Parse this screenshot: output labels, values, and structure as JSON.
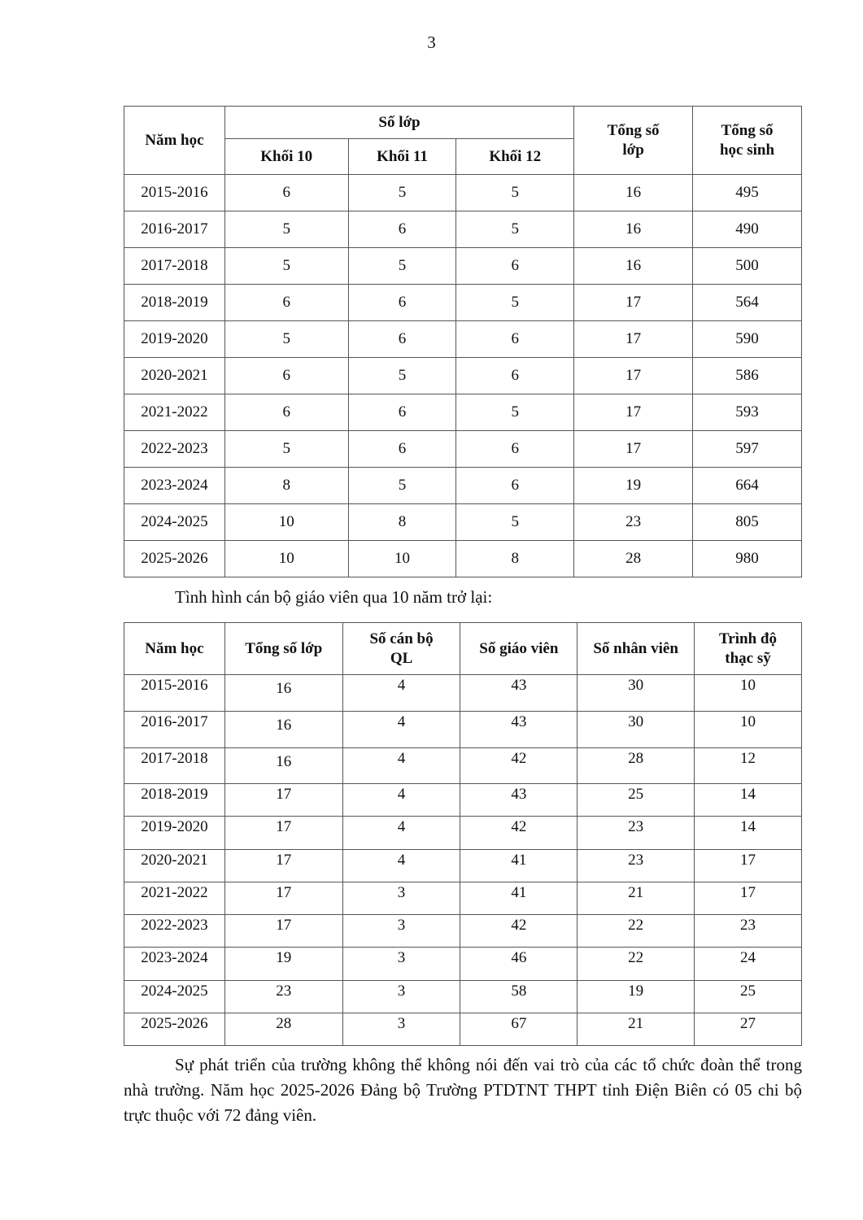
{
  "page_number": "3",
  "table1": {
    "headers": {
      "year": "Năm học",
      "group": "Số lớp",
      "k10": "Khối 10",
      "k11": "Khối 11",
      "k12": "Khối 12",
      "total_classes": "Tổng số lớp",
      "total_students": "Tổng số học sinh"
    },
    "rows": [
      [
        "2015-2016",
        "6",
        "5",
        "5",
        "16",
        "495"
      ],
      [
        "2016-2017",
        "5",
        "6",
        "5",
        "16",
        "490"
      ],
      [
        "2017-2018",
        "5",
        "5",
        "6",
        "16",
        "500"
      ],
      [
        "2018-2019",
        "6",
        "6",
        "5",
        "17",
        "564"
      ],
      [
        "2019-2020",
        "5",
        "6",
        "6",
        "17",
        "590"
      ],
      [
        "2020-2021",
        "6",
        "5",
        "6",
        "17",
        "586"
      ],
      [
        "2021-2022",
        "6",
        "6",
        "5",
        "17",
        "593"
      ],
      [
        "2022-2023",
        "5",
        "6",
        "6",
        "17",
        "597"
      ],
      [
        "2023-2024",
        "8",
        "5",
        "6",
        "19",
        "664"
      ],
      [
        "2024-2025",
        "10",
        "8",
        "5",
        "23",
        "805"
      ],
      [
        "2025-2026",
        "10",
        "10",
        "8",
        "28",
        "980"
      ]
    ]
  },
  "caption": "Tình hình cán bộ giáo viên qua 10 năm trở lại:",
  "table2": {
    "headers": [
      "Năm học",
      "Tổng số lớp",
      "Số cán bộ QL",
      "Số giáo viên",
      "Số nhân viên",
      "Trình độ thạc sỹ"
    ],
    "rows": [
      [
        "2015-2016",
        "16",
        "4",
        "43",
        "30",
        "10"
      ],
      [
        "2016-2017",
        "16",
        "4",
        "43",
        "30",
        "10"
      ],
      [
        "2017-2018",
        "16",
        "4",
        "42",
        "28",
        "12"
      ],
      [
        "2018-2019",
        "17",
        "4",
        "43",
        "25",
        "14"
      ],
      [
        "2019-2020",
        "17",
        "4",
        "42",
        "23",
        "14"
      ],
      [
        "2020-2021",
        "17",
        "4",
        "41",
        "23",
        "17"
      ],
      [
        "2021-2022",
        "17",
        "3",
        "41",
        "21",
        "17"
      ],
      [
        "2022-2023",
        "17",
        "3",
        "42",
        "22",
        "23"
      ],
      [
        "2023-2024",
        "19",
        "3",
        "46",
        "22",
        "24"
      ],
      [
        "2024-2025",
        "23",
        "3",
        "58",
        "19",
        "25"
      ],
      [
        "2025-2026",
        "28",
        "3",
        "67",
        "21",
        "27"
      ]
    ]
  },
  "paragraph": "Sự phát triển của trường không thể không nói đến vai trò của các tổ chức đoàn thể trong nhà trường. Năm học 2025-2026 Đảng bộ Trường PTDTNT THPT tỉnh Điện Biên có 05 chi bộ trực thuộc với 72 đảng viên."
}
